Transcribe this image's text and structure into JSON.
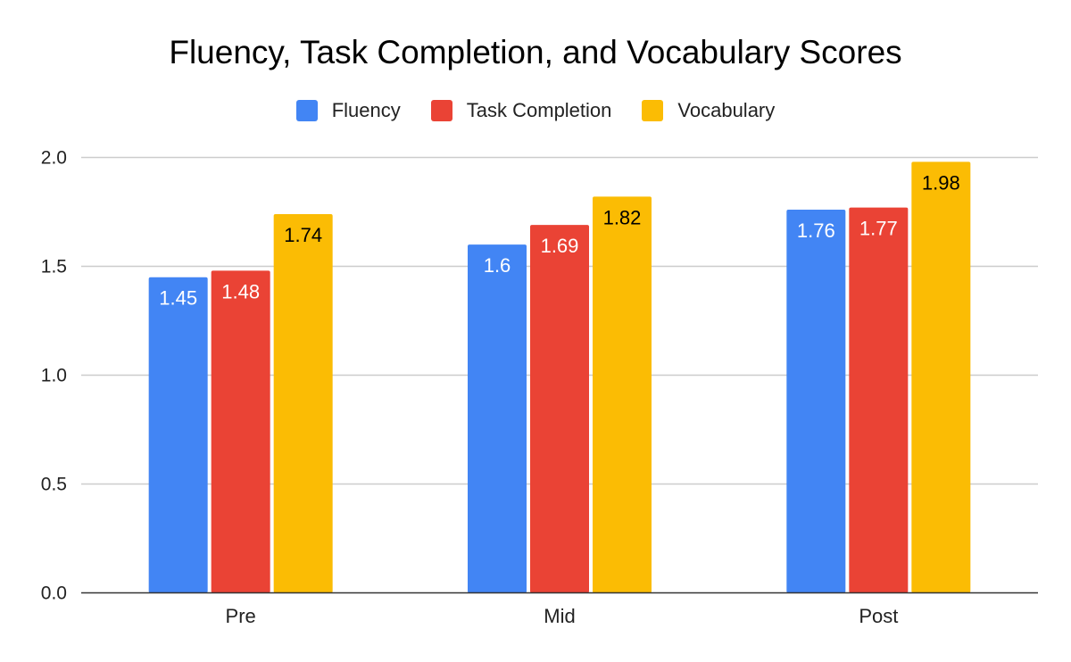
{
  "chart_data": {
    "type": "bar",
    "title": "Fluency, Task Completion, and Vocabulary Scores",
    "categories": [
      "Pre",
      "Mid",
      "Post"
    ],
    "series": [
      {
        "name": "Fluency",
        "color": "#4285F4",
        "label_color": "#ffffff",
        "values": [
          1.45,
          1.6,
          1.76
        ],
        "labels": [
          "1.45",
          "1.6",
          "1.76"
        ]
      },
      {
        "name": "Task Completion",
        "color": "#EA4335",
        "label_color": "#ffffff",
        "values": [
          1.48,
          1.69,
          1.77
        ],
        "labels": [
          "1.48",
          "1.69",
          "1.77"
        ]
      },
      {
        "name": "Vocabulary",
        "color": "#FBBC04",
        "label_color": "#000000",
        "values": [
          1.74,
          1.82,
          1.98
        ],
        "labels": [
          "1.74",
          "1.82",
          "1.98"
        ]
      }
    ],
    "ylim": [
      0,
      2.0
    ],
    "yticks": [
      "0.0",
      "0.5",
      "1.0",
      "1.5",
      "2.0"
    ],
    "xlabel": "",
    "ylabel": "",
    "grid": true,
    "legend_position": "top"
  }
}
